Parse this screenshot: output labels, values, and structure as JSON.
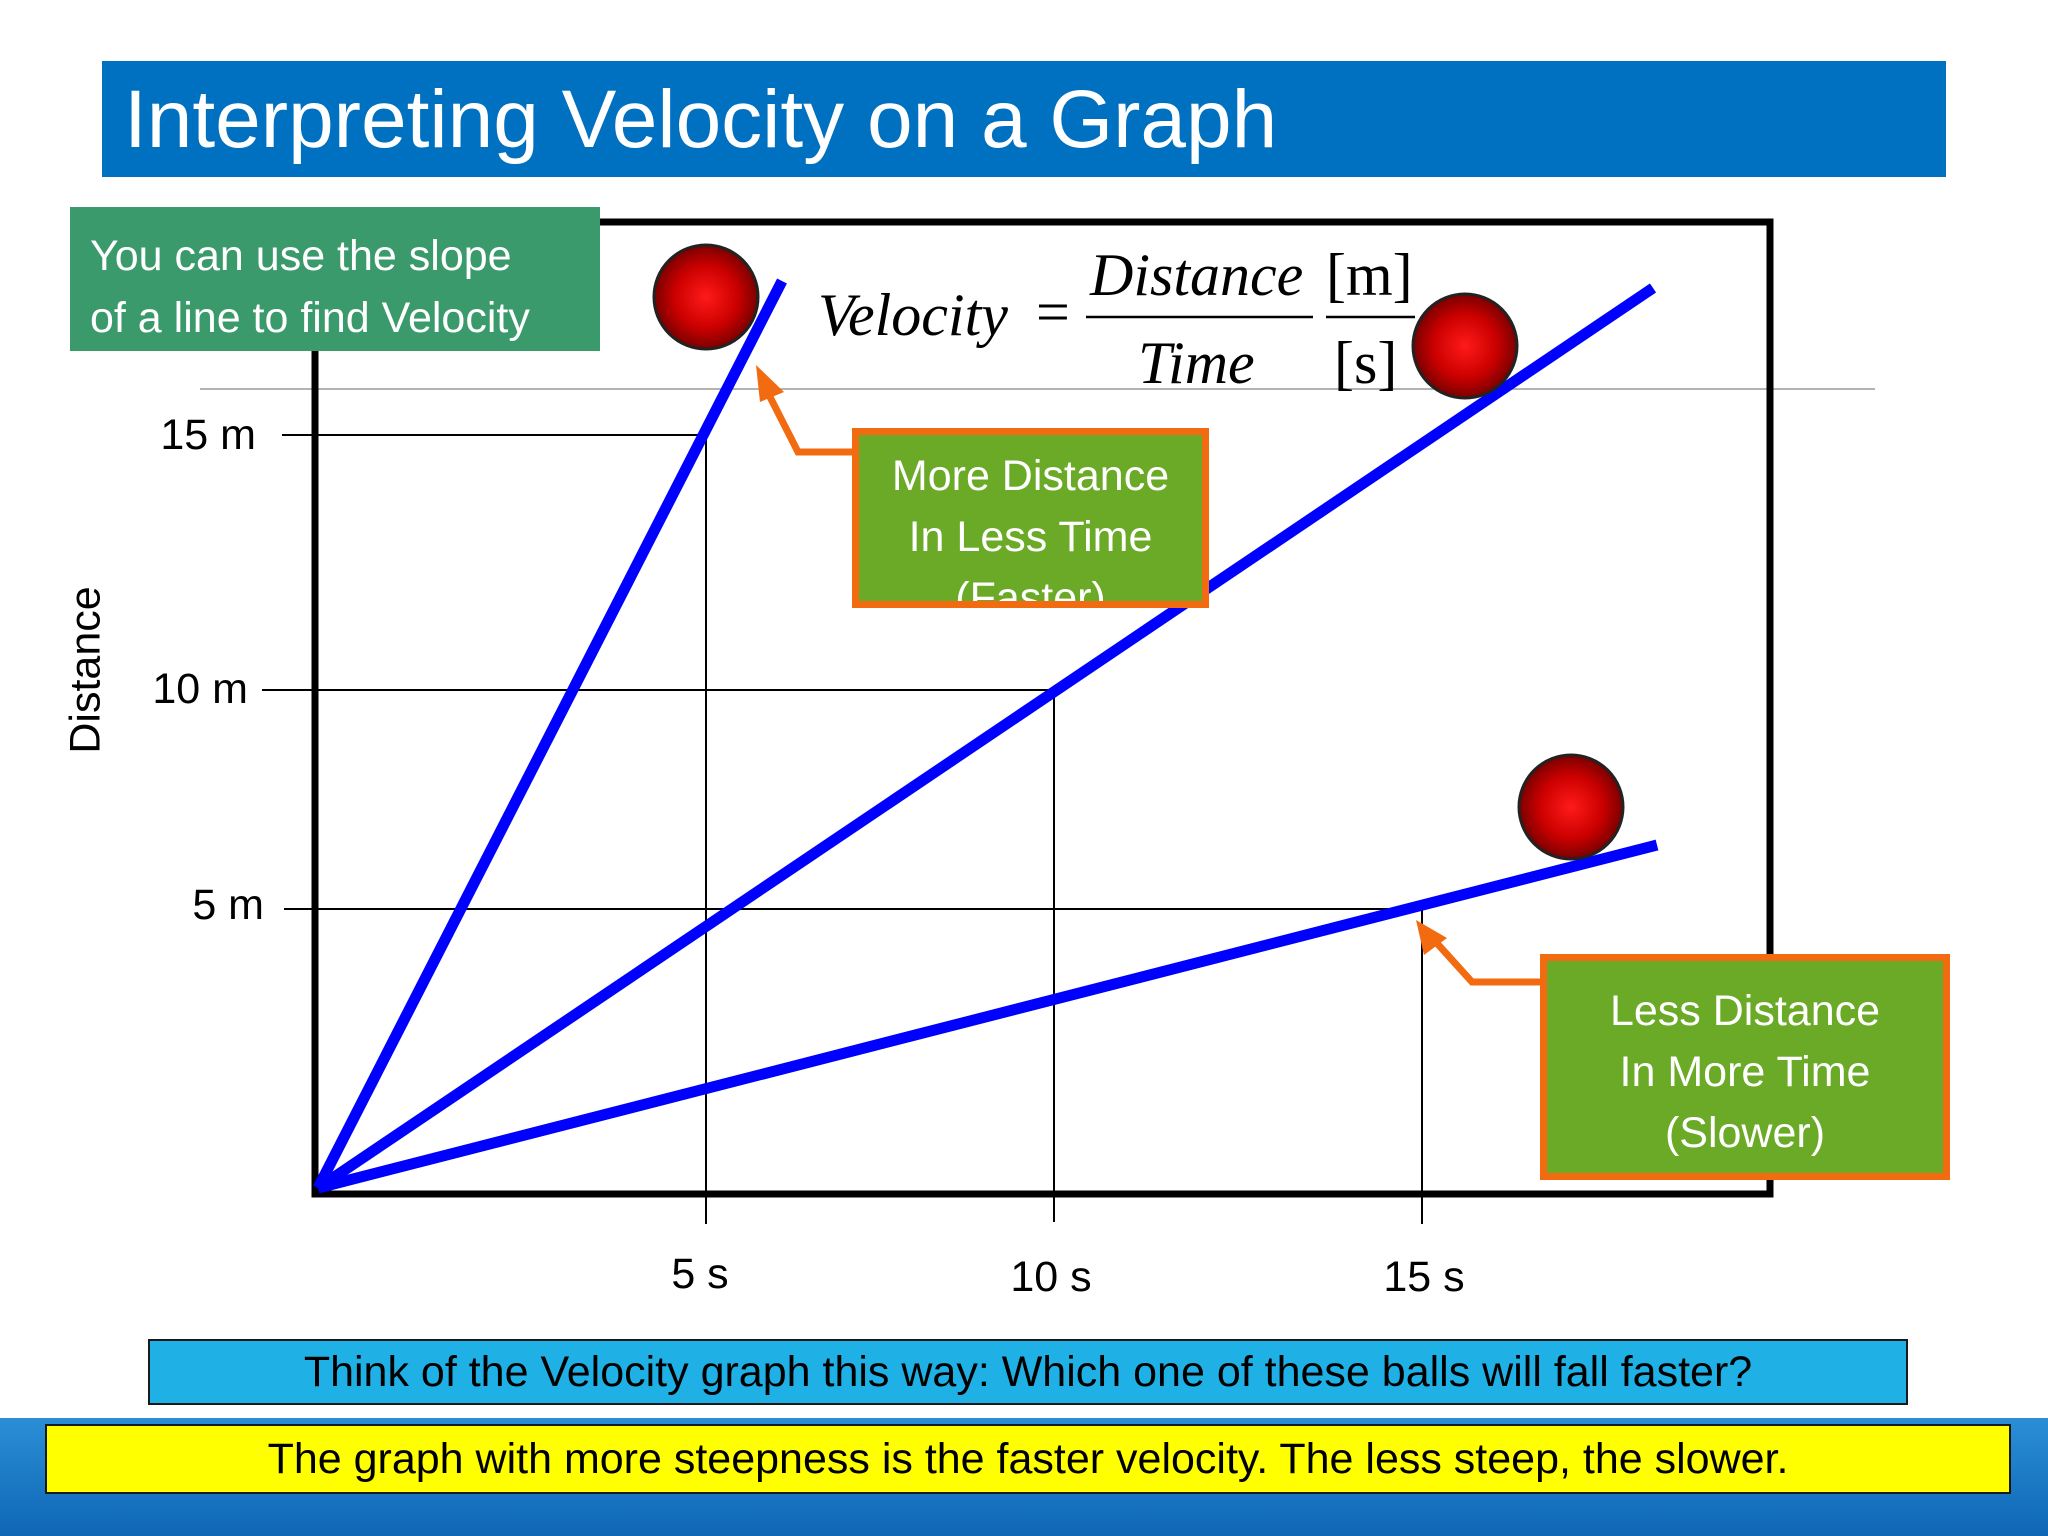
{
  "title": "Interpreting Velocity on a Graph",
  "note": "You can use the slope\nof a line to find Velocity",
  "formula": {
    "lhs": "Velocity",
    "equals": "=",
    "numerator": "Distance",
    "denominator": "Time",
    "unit_numerator": "[m]",
    "unit_denominator": "[s]"
  },
  "axes": {
    "y_label": "Distance",
    "y_ticks": [
      "15 m",
      "10 m",
      "5 m"
    ],
    "x_ticks": [
      "5 s",
      "10 s",
      "15 s"
    ]
  },
  "lines": [
    {
      "name": "steep",
      "end_time_s": 6.1,
      "end_distance_m": 17.6
    },
    {
      "name": "medium",
      "end_time_s": 18.1,
      "end_distance_m": 17.5
    },
    {
      "name": "shallow",
      "end_time_s": 18.1,
      "end_distance_m": 6.8
    }
  ],
  "callouts": {
    "faster": "More Distance\nIn Less Time\n(Faster)",
    "slower": "Less Distance\nIn More Time\n(Slower)"
  },
  "question": "Think of the Velocity graph this way: Which one of these balls will fall faster?",
  "answer": "The graph with more steepness is the faster velocity.  The less steep, the slower.",
  "colors": {
    "title_bar": "#0070c0",
    "line": "#0000ff",
    "ball": "#cc0000",
    "callout_fill": "#6aaa26",
    "callout_border": "#f26b10",
    "note_fill": "#3a9a6c",
    "question_fill": "#1fb0e6",
    "answer_fill": "#ffff00"
  }
}
